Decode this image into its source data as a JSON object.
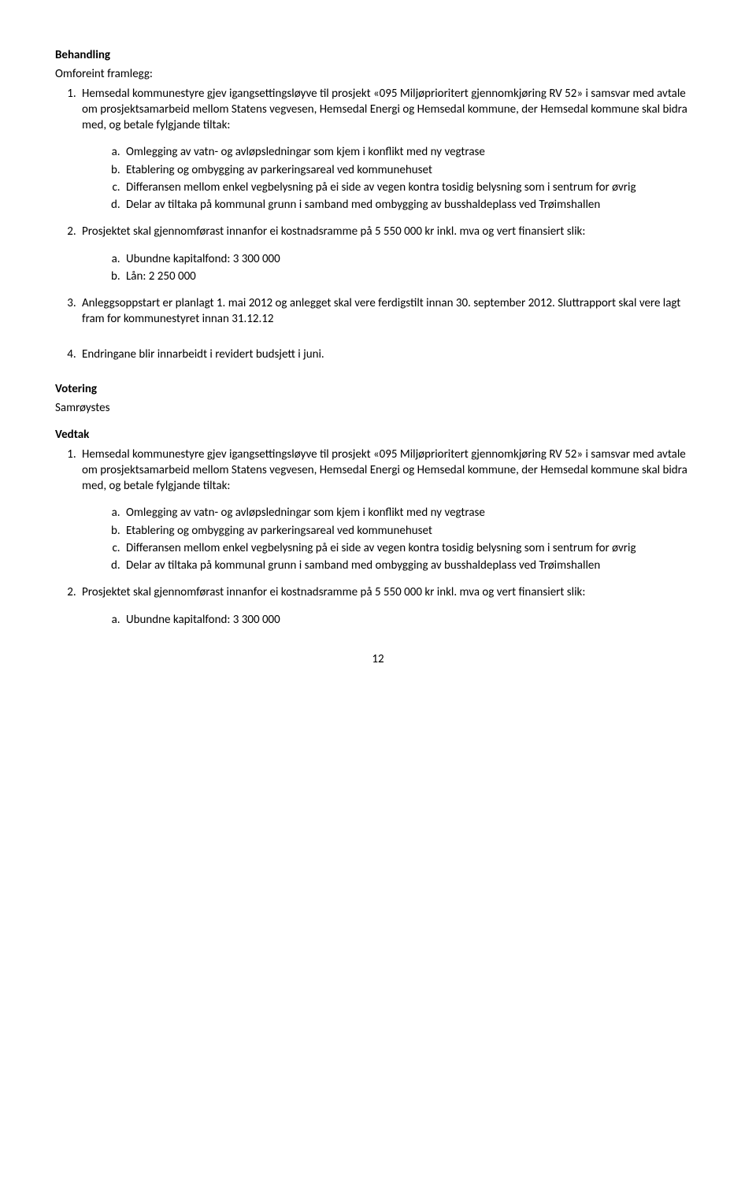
{
  "behandling": {
    "heading": "Behandling",
    "subheading": "Omforeint framlegg:",
    "item1": "Hemsedal kommunestyre gjev igangsettingsløyve til prosjekt «095 Miljøprioritert gjennomkjøring RV 52» i samsvar med avtale om prosjektsamarbeid mellom Statens vegvesen, Hemsedal Energi og Hemsedal kommune, der Hemsedal kommune skal bidra med, og betale fylgjande tiltak:",
    "sub_a": "Omlegging av vatn- og avløpsledningar som kjem i konflikt med ny vegtrase",
    "sub_b": "Etablering og ombygging av parkeringsareal ved kommunehuset",
    "sub_c": "Differansen mellom enkel vegbelysning på ei side av vegen kontra tosidig belysning som i sentrum for øvrig",
    "sub_d": "Delar av tiltaka på kommunal grunn i samband med ombygging av busshaldeplass ved Trøimshallen",
    "item2": "Prosjektet skal gjennomførast innanfor ei kostnadsramme på 5 550 000 kr inkl. mva og vert finansiert slik:",
    "fin_a": "Ubundne kapitalfond: 3 300 000",
    "fin_b": "Lån: 2 250 000",
    "item3": "Anleggsoppstart er planlagt 1. mai 2012 og anlegget skal vere ferdigstilt innan 30. september 2012. Sluttrapport skal vere lagt fram for kommunestyret innan 31.12.12",
    "item4": "Endringane blir innarbeidt i revidert budsjett i juni."
  },
  "votering": {
    "heading": "Votering",
    "text": "Samrøystes"
  },
  "vedtak": {
    "heading": "Vedtak",
    "item1": "Hemsedal kommunestyre gjev igangsettingsløyve til prosjekt «095 Miljøprioritert gjennomkjøring RV 52» i samsvar med avtale om prosjektsamarbeid mellom Statens vegvesen, Hemsedal Energi og Hemsedal kommune, der Hemsedal kommune skal bidra med, og betale fylgjande tiltak:",
    "sub_a": "Omlegging av vatn- og avløpsledningar som kjem i konflikt med ny vegtrase",
    "sub_b": "Etablering og ombygging av parkeringsareal ved kommunehuset",
    "sub_c": "Differansen mellom enkel vegbelysning på ei side av vegen kontra tosidig belysning som i sentrum for øvrig",
    "sub_d": "Delar av tiltaka på kommunal grunn i samband med ombygging av busshaldeplass ved Trøimshallen",
    "item2": "Prosjektet skal gjennomførast innanfor ei kostnadsramme på 5 550 000 kr inkl. mva og vert finansiert slik:",
    "fin_a": "Ubundne kapitalfond: 3 300 000"
  },
  "page_number": "12"
}
